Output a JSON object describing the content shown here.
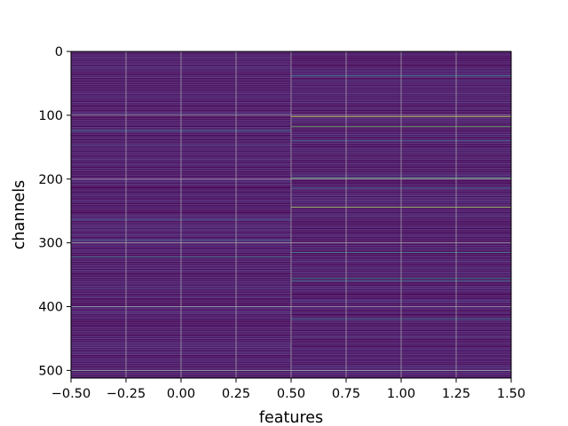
{
  "chart_data": {
    "type": "heatmap",
    "title": "",
    "xlabel": "features",
    "ylabel": "channels",
    "columns": [
      0,
      1
    ],
    "n_rows": 512,
    "xlim": [
      -0.5,
      1.5
    ],
    "ylim": [
      512,
      0
    ],
    "x_ticks": [
      "−0.50",
      "−0.25",
      "0.00",
      "0.25",
      "0.50",
      "0.75",
      "1.00",
      "1.25",
      "1.50"
    ],
    "x_tick_values": [
      -0.5,
      -0.25,
      0.0,
      0.25,
      0.5,
      0.75,
      1.0,
      1.25,
      1.5
    ],
    "y_ticks": [
      "0",
      "100",
      "200",
      "300",
      "400",
      "500"
    ],
    "y_tick_values": [
      0,
      100,
      200,
      300,
      400,
      500
    ],
    "grid": true,
    "colormap": "viridis",
    "base_value_range": [
      0.0,
      0.12
    ],
    "highlights": [
      {
        "column": 0,
        "row": 124,
        "value": 0.55
      },
      {
        "column": 0,
        "row": 264,
        "value": 0.38
      },
      {
        "column": 0,
        "row": 296,
        "value": 0.42
      },
      {
        "column": 0,
        "row": 322,
        "value": 0.52
      },
      {
        "column": 0,
        "row": 400,
        "value": 0.35
      },
      {
        "column": 0,
        "row": 500,
        "value": 0.4
      },
      {
        "column": 1,
        "row": 38,
        "value": 0.6
      },
      {
        "column": 1,
        "row": 102,
        "value": 0.95
      },
      {
        "column": 1,
        "row": 118,
        "value": 0.85
      },
      {
        "column": 1,
        "row": 140,
        "value": 0.4
      },
      {
        "column": 1,
        "row": 198,
        "value": 0.8
      },
      {
        "column": 1,
        "row": 214,
        "value": 0.45
      },
      {
        "column": 1,
        "row": 244,
        "value": 0.92
      },
      {
        "column": 1,
        "row": 315,
        "value": 0.55
      },
      {
        "column": 1,
        "row": 356,
        "value": 0.7
      },
      {
        "column": 1,
        "row": 360,
        "value": 0.5
      },
      {
        "column": 1,
        "row": 420,
        "value": 0.55
      },
      {
        "column": 1,
        "row": 500,
        "value": 0.45
      }
    ]
  }
}
